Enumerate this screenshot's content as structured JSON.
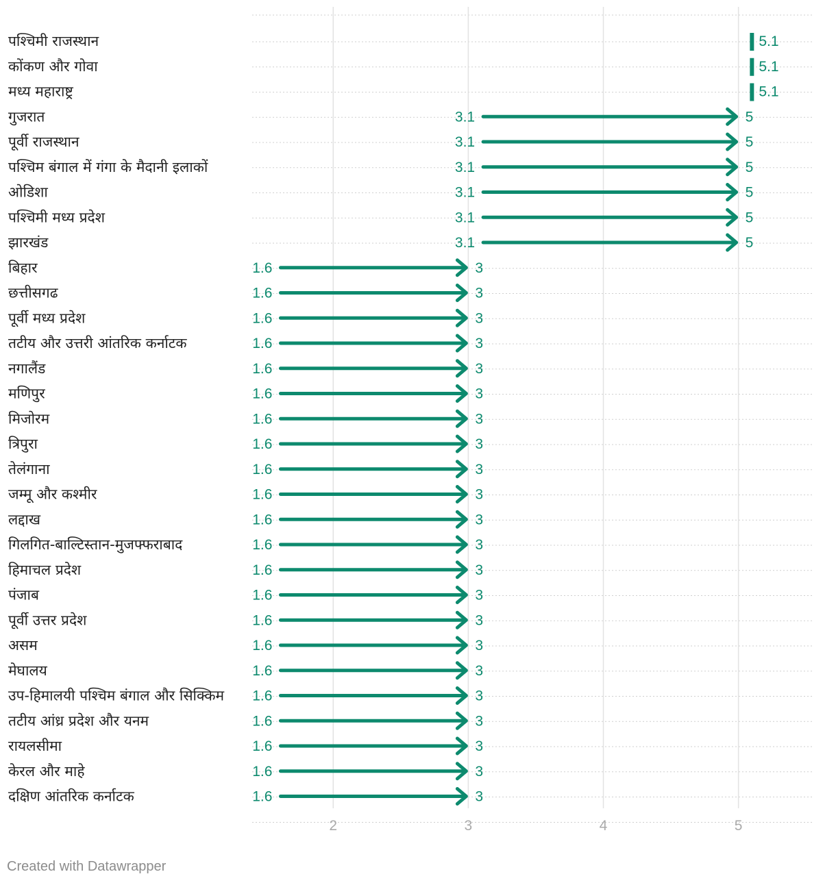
{
  "chart_data": {
    "type": "arrow",
    "x_domain": [
      1.4,
      5.56
    ],
    "x_ticks": [
      2,
      3,
      4,
      5
    ],
    "x_tick_labels": [
      "2",
      "3",
      "4",
      "5"
    ],
    "color": "#0d8a6e",
    "rows": [
      {
        "label": "पश्चिमी राजस्थान",
        "from": 5.1,
        "to": 5.1,
        "from_label": "",
        "to_label": "5.1"
      },
      {
        "label": "कोंकण और गोवा",
        "from": 5.1,
        "to": 5.1,
        "from_label": "",
        "to_label": "5.1"
      },
      {
        "label": "मध्य महाराष्ट्र",
        "from": 5.1,
        "to": 5.1,
        "from_label": "",
        "to_label": "5.1"
      },
      {
        "label": "गुजरात",
        "from": 3.1,
        "to": 5,
        "from_label": "3.1",
        "to_label": "5"
      },
      {
        "label": "पूर्वी राजस्थान",
        "from": 3.1,
        "to": 5,
        "from_label": "3.1",
        "to_label": "5"
      },
      {
        "label": "पश्चिम बंगाल में गंगा के मैदानी इलाकों",
        "from": 3.1,
        "to": 5,
        "from_label": "3.1",
        "to_label": "5"
      },
      {
        "label": "ओडिशा",
        "from": 3.1,
        "to": 5,
        "from_label": "3.1",
        "to_label": "5"
      },
      {
        "label": "पश्चिमी मध्य प्रदेश",
        "from": 3.1,
        "to": 5,
        "from_label": "3.1",
        "to_label": "5"
      },
      {
        "label": "झारखंड",
        "from": 3.1,
        "to": 5,
        "from_label": "3.1",
        "to_label": "5"
      },
      {
        "label": "बिहार",
        "from": 1.6,
        "to": 3,
        "from_label": "1.6",
        "to_label": "3"
      },
      {
        "label": "छत्तीसगढ",
        "from": 1.6,
        "to": 3,
        "from_label": "1.6",
        "to_label": "3"
      },
      {
        "label": "पूर्वी मध्य प्रदेश",
        "from": 1.6,
        "to": 3,
        "from_label": "1.6",
        "to_label": "3"
      },
      {
        "label": "तटीय और उत्तरी आंतरिक कर्नाटक",
        "from": 1.6,
        "to": 3,
        "from_label": "1.6",
        "to_label": "3"
      },
      {
        "label": "नगालैंड",
        "from": 1.6,
        "to": 3,
        "from_label": "1.6",
        "to_label": "3"
      },
      {
        "label": "मणिपुर",
        "from": 1.6,
        "to": 3,
        "from_label": "1.6",
        "to_label": "3"
      },
      {
        "label": "मिजोरम",
        "from": 1.6,
        "to": 3,
        "from_label": "1.6",
        "to_label": "3"
      },
      {
        "label": "त्रिपुरा",
        "from": 1.6,
        "to": 3,
        "from_label": "1.6",
        "to_label": "3"
      },
      {
        "label": "तेलंगाना",
        "from": 1.6,
        "to": 3,
        "from_label": "1.6",
        "to_label": "3"
      },
      {
        "label": "जम्मू और कश्मीर",
        "from": 1.6,
        "to": 3,
        "from_label": "1.6",
        "to_label": "3"
      },
      {
        "label": "लद्दाख",
        "from": 1.6,
        "to": 3,
        "from_label": "1.6",
        "to_label": "3"
      },
      {
        "label": "गिलगित-बाल्टिस्तान-मुजफ्फराबाद",
        "from": 1.6,
        "to": 3,
        "from_label": "1.6",
        "to_label": "3"
      },
      {
        "label": "हिमाचल प्रदेश",
        "from": 1.6,
        "to": 3,
        "from_label": "1.6",
        "to_label": "3"
      },
      {
        "label": "पंजाब",
        "from": 1.6,
        "to": 3,
        "from_label": "1.6",
        "to_label": "3"
      },
      {
        "label": "पूर्वी उत्तर प्रदेश",
        "from": 1.6,
        "to": 3,
        "from_label": "1.6",
        "to_label": "3"
      },
      {
        "label": "असम",
        "from": 1.6,
        "to": 3,
        "from_label": "1.6",
        "to_label": "3"
      },
      {
        "label": "मेघालय",
        "from": 1.6,
        "to": 3,
        "from_label": "1.6",
        "to_label": "3"
      },
      {
        "label": "उप-हिमालयी पश्चिम बंगाल और सिक्किम",
        "from": 1.6,
        "to": 3,
        "from_label": "1.6",
        "to_label": "3"
      },
      {
        "label": "तटीय आंध्र प्रदेश और यनम",
        "from": 1.6,
        "to": 3,
        "from_label": "1.6",
        "to_label": "3"
      },
      {
        "label": "रायलसीमा",
        "from": 1.6,
        "to": 3,
        "from_label": "1.6",
        "to_label": "3"
      },
      {
        "label": "केरल और माहे",
        "from": 1.6,
        "to": 3,
        "from_label": "1.6",
        "to_label": "3"
      },
      {
        "label": "दक्षिण आंतरिक कर्नाटक",
        "from": 1.6,
        "to": 3,
        "from_label": "1.6",
        "to_label": "3"
      }
    ]
  },
  "footer": {
    "text": "Created with Datawrapper"
  }
}
